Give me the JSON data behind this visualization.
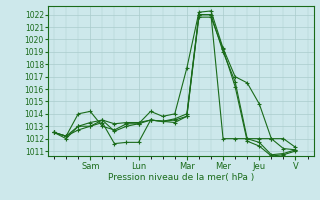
{
  "background_color": "#cde8eb",
  "grid_color": "#aacccc",
  "line_color": "#1a6b1a",
  "ylabel_text": "Pression niveau de la mer( hPa )",
  "yticks": [
    1011,
    1012,
    1013,
    1014,
    1015,
    1016,
    1017,
    1018,
    1019,
    1020,
    1021,
    1022
  ],
  "day_labels": [
    "Sam",
    "Lun",
    "Mar",
    "Mer",
    "Jeu",
    "V"
  ],
  "day_positions": [
    3,
    7,
    11,
    14,
    17,
    20
  ],
  "xlim": [
    -0.5,
    21.5
  ],
  "ylim": [
    1010.6,
    1022.7
  ],
  "series": [
    [
      1012.5,
      1012.2,
      1014.0,
      1014.2,
      1013.0,
      1012.7,
      1013.2,
      1013.2,
      1014.2,
      1013.8,
      1014.0,
      1017.7,
      1022.2,
      1022.3,
      1019.3,
      1017.0,
      1016.5,
      1014.8,
      1012.0,
      1012.0,
      1011.3
    ],
    [
      1012.5,
      1012.2,
      1013.0,
      1013.3,
      1013.5,
      1012.6,
      1013.0,
      1013.2,
      1013.5,
      1013.4,
      1013.6,
      1014.0,
      1022.0,
      1022.0,
      1019.0,
      1016.6,
      1012.0,
      1011.7,
      1010.7,
      1010.8,
      1011.1
    ],
    [
      1012.5,
      1012.2,
      1012.7,
      1013.0,
      1013.3,
      1011.6,
      1011.7,
      1011.7,
      1013.5,
      1013.4,
      1013.5,
      1013.8,
      1021.8,
      1021.8,
      1019.2,
      1016.2,
      1011.8,
      1011.4,
      1010.6,
      1010.7,
      1011.0
    ],
    [
      1012.5,
      1012.0,
      1013.0,
      1013.0,
      1013.5,
      1013.2,
      1013.3,
      1013.3,
      1013.5,
      1013.4,
      1013.3,
      1013.8,
      1022.0,
      1022.0,
      1012.0,
      1012.0,
      1012.0,
      1012.0,
      1012.0,
      1011.2,
      1011.1
    ]
  ],
  "num_points": 21,
  "tick_fontsize": 5.5,
  "xlabel_fontsize": 6.5,
  "xtick_fontsize": 6.0,
  "linewidth": 0.8,
  "markersize": 3.0
}
